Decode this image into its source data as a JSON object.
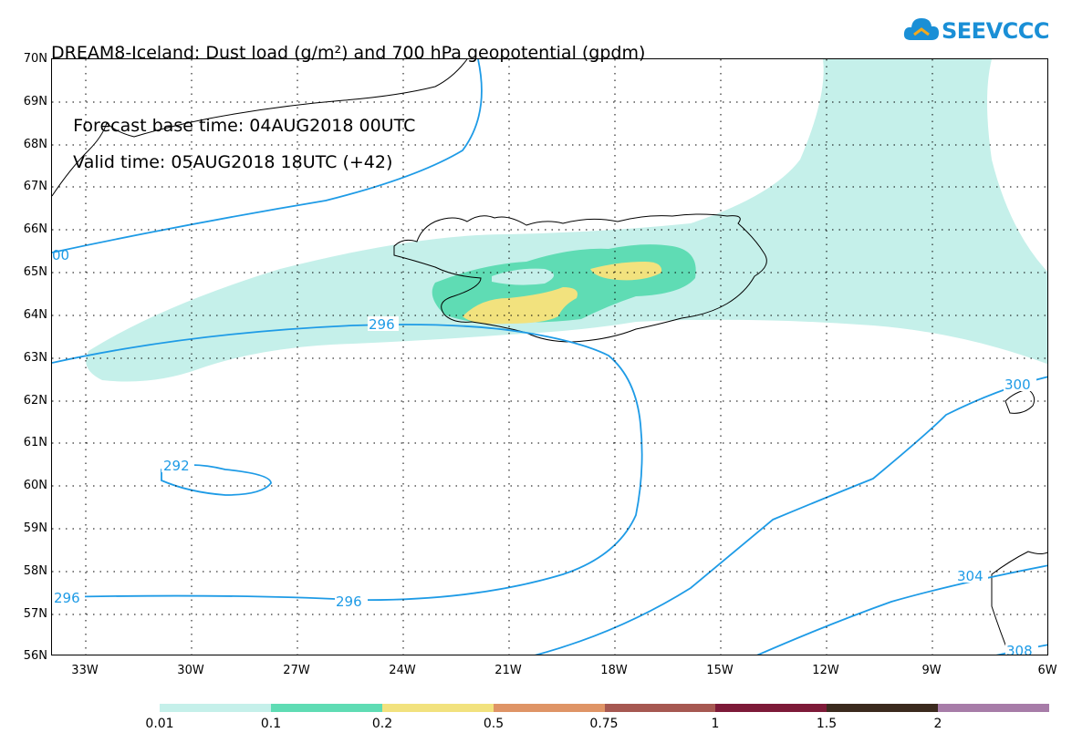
{
  "title": {
    "line1": "DREAM8-Iceland: Dust load (g/m²) and 700 hPa geopotential (gpdm)",
    "base_time": "Forecast base time: 04AUG2018 00UTC",
    "valid_time": "Valid time: 05AUG2018 18UTC (+42)"
  },
  "logo": {
    "text": "SEEVCCC"
  },
  "axes": {
    "lat_labels": [
      "70N",
      "69N",
      "68N",
      "67N",
      "66N",
      "65N",
      "64N",
      "63N",
      "62N",
      "61N",
      "60N",
      "59N",
      "58N",
      "57N",
      "56N"
    ],
    "lon_labels": [
      "33W",
      "30W",
      "27W",
      "24W",
      "21W",
      "18W",
      "15W",
      "12W",
      "9W",
      "6W"
    ]
  },
  "contour_labels": {
    "c296_a": "296",
    "c296_b": "296",
    "c296_c": "296",
    "c292": "292",
    "c300_a": "00",
    "c300_b": "300",
    "c304": "304",
    "c308": "308"
  },
  "legend": {
    "colors": [
      "#c5f0ea",
      "#5fdcb4",
      "#f2e27e",
      "#df9466",
      "#a65851",
      "#7d1a38",
      "#3b2a1e",
      "#a77ca8"
    ],
    "labels": [
      "0.01",
      "0.1",
      "0.2",
      "0.5",
      "0.75",
      "1",
      "1.5",
      "2"
    ]
  },
  "style": {
    "dust_001": "#c5f0ea",
    "dust_01": "#5fdcb4",
    "dust_02": "#f2e27e",
    "contour": "#1e9be6"
  }
}
